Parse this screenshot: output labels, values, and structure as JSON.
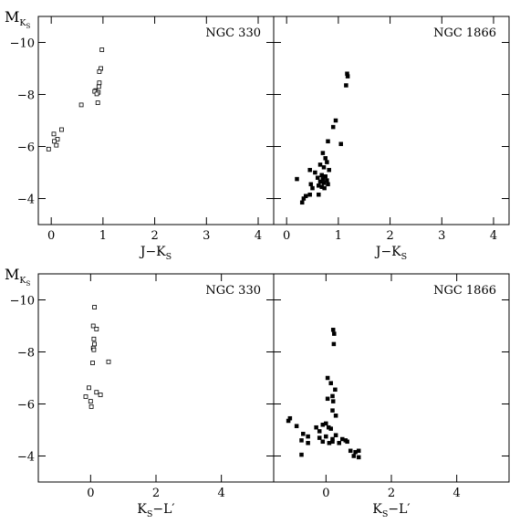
{
  "chart_data": [
    {
      "type": "scatter",
      "panel_label": "NGC 330",
      "xlabel": "J−K",
      "xlabel_sub": "S",
      "ylabel": "M",
      "ylabel_sub": "K",
      "ylabel_subsub": "S",
      "xlim": [
        -0.25,
        4.3
      ],
      "ylim": [
        -3,
        -11
      ],
      "xticks": [
        0,
        1,
        2,
        3,
        4
      ],
      "yticks": [
        -4,
        -6,
        -8,
        -10
      ],
      "ytick_labels": [
        "−4",
        "−6",
        "−8",
        "−10"
      ],
      "marker": "open-square",
      "points": [
        [
          0.98,
          -9.72
        ],
        [
          0.96,
          -9.0
        ],
        [
          0.93,
          -8.88
        ],
        [
          0.93,
          -8.45
        ],
        [
          0.92,
          -8.3
        ],
        [
          0.86,
          -8.15
        ],
        [
          0.84,
          -8.12
        ],
        [
          0.91,
          -8.08
        ],
        [
          0.88,
          -8.02
        ],
        [
          0.9,
          -7.68
        ],
        [
          0.58,
          -7.6
        ],
        [
          0.2,
          -6.65
        ],
        [
          0.05,
          -6.48
        ],
        [
          0.12,
          -6.28
        ],
        [
          0.06,
          -6.2
        ],
        [
          0.1,
          -6.05
        ],
        [
          -0.05,
          -5.9
        ]
      ]
    },
    {
      "type": "scatter",
      "panel_label": "NGC 1866",
      "xlabel": "J−K",
      "xlabel_sub": "S",
      "ylabel": "",
      "xlim": [
        -0.25,
        4.3
      ],
      "ylim": [
        -3,
        -11
      ],
      "xticks": [
        0,
        1,
        2,
        3,
        4
      ],
      "yticks": [
        -4,
        -6,
        -8,
        -10
      ],
      "marker": "filled-square",
      "points": [
        [
          1.17,
          -8.8
        ],
        [
          1.18,
          -8.7
        ],
        [
          1.15,
          -8.35
        ],
        [
          0.95,
          -7.0
        ],
        [
          0.9,
          -6.75
        ],
        [
          1.05,
          -6.1
        ],
        [
          0.8,
          -6.2
        ],
        [
          0.7,
          -5.75
        ],
        [
          0.75,
          -5.55
        ],
        [
          0.78,
          -5.4
        ],
        [
          0.65,
          -5.3
        ],
        [
          0.72,
          -5.2
        ],
        [
          0.82,
          -5.1
        ],
        [
          0.45,
          -5.1
        ],
        [
          0.55,
          -5.0
        ],
        [
          0.68,
          -4.9
        ],
        [
          0.75,
          -4.85
        ],
        [
          0.6,
          -4.8
        ],
        [
          0.7,
          -4.75
        ],
        [
          0.78,
          -4.7
        ],
        [
          0.65,
          -4.65
        ],
        [
          0.72,
          -4.6
        ],
        [
          0.8,
          -4.55
        ],
        [
          0.62,
          -4.5
        ],
        [
          0.68,
          -4.45
        ],
        [
          0.73,
          -4.4
        ],
        [
          0.47,
          -4.55
        ],
        [
          0.5,
          -4.4
        ],
        [
          0.2,
          -4.75
        ],
        [
          0.45,
          -4.15
        ],
        [
          0.62,
          -4.15
        ],
        [
          0.37,
          -4.1
        ],
        [
          0.33,
          -4.0
        ],
        [
          0.3,
          -3.85
        ]
      ]
    },
    {
      "type": "scatter",
      "panel_label": "NGC 330",
      "xlabel": "K",
      "xlabel_sub": "S",
      "xlabel_tail": "−L′",
      "ylabel": "M",
      "ylabel_sub": "K",
      "ylabel_subsub": "S",
      "xlim": [
        -1.6,
        5.6
      ],
      "ylim": [
        -3,
        -11
      ],
      "xticks": [
        0,
        2,
        4
      ],
      "yticks": [
        -4,
        -6,
        -8,
        -10
      ],
      "ytick_labels": [
        "−4",
        "−6",
        "−8",
        "−10"
      ],
      "marker": "open-square",
      "points": [
        [
          0.12,
          -9.72
        ],
        [
          0.08,
          -9.0
        ],
        [
          0.18,
          -8.88
        ],
        [
          0.1,
          -8.5
        ],
        [
          0.12,
          -8.3
        ],
        [
          0.08,
          -8.15
        ],
        [
          0.1,
          -8.08
        ],
        [
          0.06,
          -7.58
        ],
        [
          0.55,
          -7.62
        ],
        [
          -0.05,
          -6.62
        ],
        [
          0.18,
          -6.45
        ],
        [
          0.3,
          -6.35
        ],
        [
          -0.15,
          -6.28
        ],
        [
          0.0,
          -6.1
        ],
        [
          0.02,
          -5.9
        ]
      ]
    },
    {
      "type": "scatter",
      "panel_label": "NGC 1866",
      "xlabel": "K",
      "xlabel_sub": "S",
      "xlabel_tail": "−L′",
      "ylabel": "",
      "xlim": [
        -1.6,
        5.6
      ],
      "ylim": [
        -3,
        -11
      ],
      "xticks": [
        0,
        2,
        4
      ],
      "yticks": [
        -4,
        -6,
        -8,
        -10
      ],
      "marker": "filled-square",
      "points": [
        [
          0.22,
          -8.85
        ],
        [
          0.25,
          -8.7
        ],
        [
          0.24,
          -8.3
        ],
        [
          0.05,
          -7.0
        ],
        [
          0.15,
          -6.8
        ],
        [
          0.28,
          -6.55
        ],
        [
          0.2,
          -6.3
        ],
        [
          0.22,
          -6.1
        ],
        [
          0.05,
          -6.2
        ],
        [
          0.2,
          -5.75
        ],
        [
          0.3,
          -5.55
        ],
        [
          -1.1,
          -5.45
        ],
        [
          -1.15,
          -5.35
        ],
        [
          -0.9,
          -5.15
        ],
        [
          -0.3,
          -5.1
        ],
        [
          -0.1,
          -5.2
        ],
        [
          0.0,
          -5.25
        ],
        [
          0.15,
          -5.05
        ],
        [
          0.08,
          -5.1
        ],
        [
          -0.2,
          -4.95
        ],
        [
          -0.7,
          -4.85
        ],
        [
          -0.55,
          -4.75
        ],
        [
          0.3,
          -4.8
        ],
        [
          -0.2,
          -4.7
        ],
        [
          0.0,
          -4.75
        ],
        [
          0.2,
          -4.65
        ],
        [
          0.5,
          -4.65
        ],
        [
          0.6,
          -4.6
        ],
        [
          -0.1,
          -4.55
        ],
        [
          0.1,
          -4.5
        ],
        [
          0.2,
          -4.55
        ],
        [
          -0.55,
          -4.5
        ],
        [
          -0.75,
          -4.6
        ],
        [
          0.4,
          -4.5
        ],
        [
          0.65,
          -4.55
        ],
        [
          -0.75,
          -4.05
        ],
        [
          0.75,
          -4.2
        ],
        [
          0.9,
          -4.15
        ],
        [
          1.0,
          -4.2
        ],
        [
          0.85,
          -4.0
        ],
        [
          1.0,
          -3.95
        ]
      ]
    }
  ]
}
